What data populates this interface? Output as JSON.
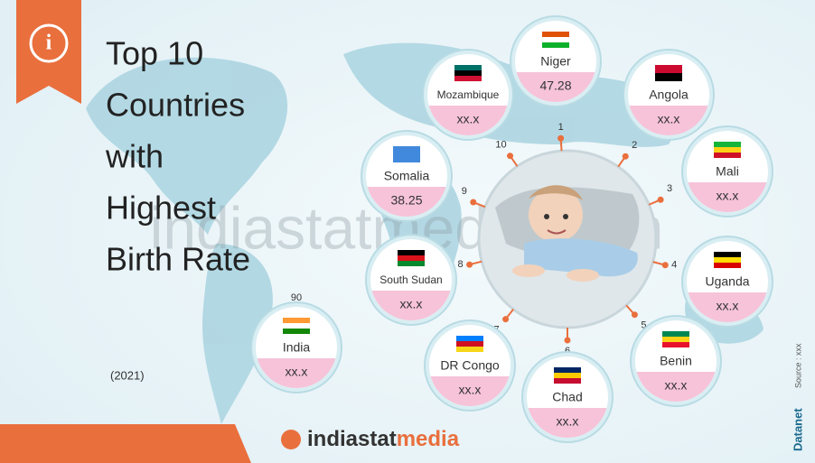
{
  "header": {
    "title_lines": [
      "Top 10",
      "Countries",
      "with",
      "Highest",
      "Birth Rate"
    ],
    "year": "(2021)"
  },
  "countries": [
    {
      "rank": "1",
      "name": "Niger",
      "value": "47.28"
    },
    {
      "rank": "2",
      "name": "Angola",
      "value": "xx.x"
    },
    {
      "rank": "3",
      "name": "Mali",
      "value": "xx.x"
    },
    {
      "rank": "4",
      "name": "Uganda",
      "value": "xx.x"
    },
    {
      "rank": "5",
      "name": "Benin",
      "value": "xx.x"
    },
    {
      "rank": "6",
      "name": "Chad",
      "value": "xx.x"
    },
    {
      "rank": "7",
      "name": "DR Congo",
      "value": "xx.x"
    },
    {
      "rank": "8",
      "name": "South Sudan",
      "value": "xx.x"
    },
    {
      "rank": "9",
      "name": "Somalia",
      "value": "38.25"
    },
    {
      "rank": "10",
      "name": "Mozambique",
      "value": "xx.x"
    }
  ],
  "india": {
    "rank": "90",
    "name": "India",
    "value": "xx.x"
  },
  "watermark": "indiastatmedia.com",
  "footer": {
    "logo_main": "indiastat",
    "logo_accent": "media",
    "brand": "Datanet",
    "source": "Source : xxx"
  }
}
